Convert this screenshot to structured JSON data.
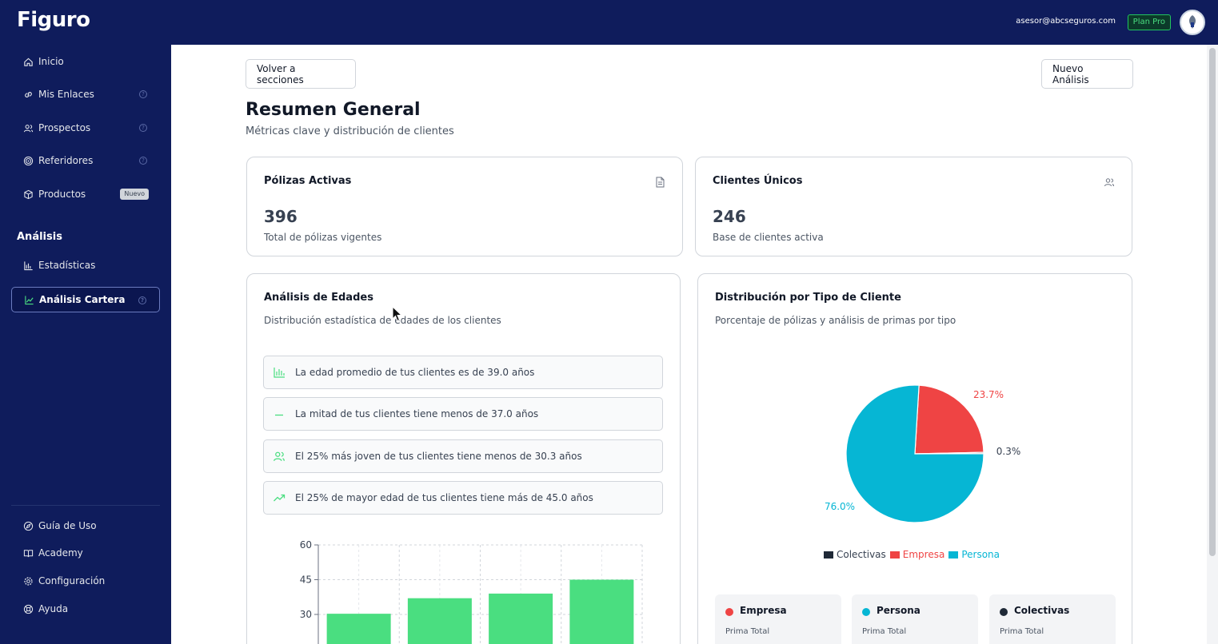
{
  "app": {
    "logo": "Figuro"
  },
  "header": {
    "user_email": "asesor@abcseguros.com",
    "plan_badge": "Plan Pro"
  },
  "sidebar": {
    "items": [
      {
        "label": "Inicio",
        "icon": "home-icon"
      },
      {
        "label": "Mis Enlaces",
        "icon": "link-icon"
      },
      {
        "label": "Prospectos",
        "icon": "users-icon"
      },
      {
        "label": "Referidores",
        "icon": "target-icon"
      },
      {
        "label": "Productos",
        "icon": "box-icon",
        "badge": "Nuevo"
      }
    ],
    "section_label": "Análisis",
    "analysis_items": [
      {
        "label": "Estadísticas",
        "icon": "bar-chart-icon"
      },
      {
        "label": "Análisis Cartera",
        "icon": "line-chart-icon",
        "active": true
      }
    ],
    "footer_items": [
      {
        "label": "Guía de Uso",
        "icon": "compass-icon"
      },
      {
        "label": "Academy",
        "icon": "book-icon"
      },
      {
        "label": "Configuración",
        "icon": "gear-icon"
      },
      {
        "label": "Ayuda",
        "icon": "lifebuoy-icon"
      }
    ]
  },
  "main": {
    "back_button": "Volver a secciones",
    "new_button": "Nuevo Análisis",
    "title": "Resumen General",
    "subtitle": "Métricas clave y distribución de clientes",
    "metrics": [
      {
        "title": "Pólizas Activas",
        "value": "396",
        "caption": "Total de pólizas vigentes",
        "icon": "document-icon"
      },
      {
        "title": "Clientes Únicos",
        "value": "246",
        "caption": "Base de clientes activa",
        "icon": "users-icon"
      }
    ],
    "ages": {
      "title": "Análisis de Edades",
      "subtitle": "Distribución estadística de edades de los clientes",
      "insights": [
        {
          "text": "La edad promedio de tus clientes es de 39.0 años",
          "icon": "bar-chart-icon"
        },
        {
          "text": "La mitad de tus clientes tiene menos de 37.0 años",
          "icon": "minus-icon"
        },
        {
          "text": "El 25% más joven de tus clientes tiene menos de 30.3 años",
          "icon": "users-icon"
        },
        {
          "text": "El 25% de mayor edad de tus clientes tiene más de 45.0 años",
          "icon": "trending-up-icon"
        }
      ]
    },
    "distribution": {
      "title": "Distribución por Tipo de Cliente",
      "subtitle": "Porcentaje de pólizas y análisis de primas por tipo",
      "types": [
        {
          "name": "Empresa",
          "color": "#ef4444",
          "label": "Prima Total"
        },
        {
          "name": "Persona",
          "color": "#06b6d4",
          "label": "Prima Total"
        },
        {
          "name": "Colectivas",
          "color": "#1f2937",
          "label": "Prima Total"
        }
      ]
    }
  },
  "chart_data": [
    {
      "type": "bar",
      "categories": [
        "",
        "",
        "",
        ""
      ],
      "values": [
        30.3,
        37.0,
        39.0,
        45.0
      ],
      "yticks": [
        "60",
        "45",
        "30"
      ],
      "ylim": [
        0,
        60
      ],
      "color": "#4ade80",
      "grid": true
    },
    {
      "type": "pie",
      "slices": [
        {
          "name": "Empresa",
          "value": 23.7,
          "label": "23.7%",
          "color": "#ef4444"
        },
        {
          "name": "Colectivas",
          "value": 0.3,
          "label": "0.3%",
          "color": "#1f2937"
        },
        {
          "name": "Persona",
          "value": 76.0,
          "label": "76.0%",
          "color": "#06b6d4"
        }
      ],
      "legend": [
        "Colectivas",
        "Empresa",
        "Persona"
      ],
      "legend_position": "bottom"
    }
  ]
}
